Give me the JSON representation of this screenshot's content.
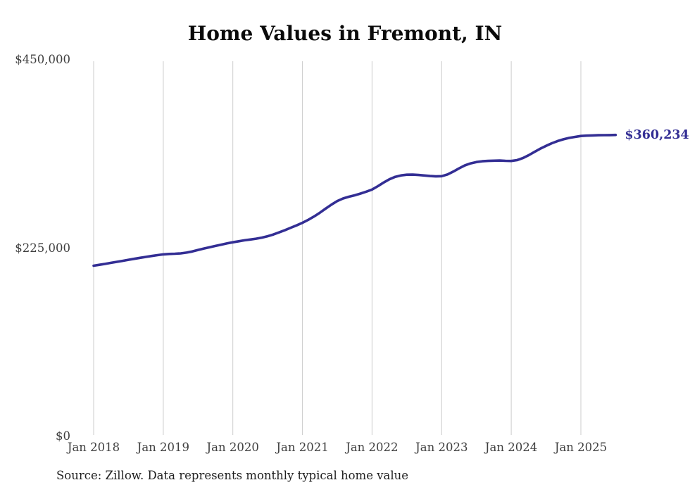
{
  "page": {
    "background": "#ffffff"
  },
  "chart_data": {
    "type": "line",
    "title": "Home Values in Fremont, IN",
    "xlabel": "",
    "ylabel": "",
    "ylim": [
      0,
      450000
    ],
    "grid": "vertical-only",
    "legend": "none",
    "line_color": "#332e94",
    "gridline_color": "#cccccc",
    "tick_text_color": "#3f3f3f",
    "end_label": "$360,234",
    "end_value": 360234,
    "source_note": "Source: Zillow. Data represents monthly typical home value",
    "yticks": [
      {
        "value": 0,
        "label": "$0"
      },
      {
        "value": 225000,
        "label": "$225,000"
      },
      {
        "value": 450000,
        "label": "$450,000"
      }
    ],
    "xticks": [
      {
        "index": 0,
        "label": "Jan 2018"
      },
      {
        "index": 12,
        "label": "Jan 2019"
      },
      {
        "index": 24,
        "label": "Jan 2020"
      },
      {
        "index": 36,
        "label": "Jan 2021"
      },
      {
        "index": 48,
        "label": "Jan 2022"
      },
      {
        "index": 60,
        "label": "Jan 2023"
      },
      {
        "index": 72,
        "label": "Jan 2024"
      },
      {
        "index": 84,
        "label": "Jan 2025"
      }
    ],
    "x": [
      "2018-01",
      "2018-02",
      "2018-03",
      "2018-04",
      "2018-05",
      "2018-06",
      "2018-07",
      "2018-08",
      "2018-09",
      "2018-10",
      "2018-11",
      "2018-12",
      "2019-01",
      "2019-02",
      "2019-03",
      "2019-04",
      "2019-05",
      "2019-06",
      "2019-07",
      "2019-08",
      "2019-09",
      "2019-10",
      "2019-11",
      "2019-12",
      "2020-01",
      "2020-02",
      "2020-03",
      "2020-04",
      "2020-05",
      "2020-06",
      "2020-07",
      "2020-08",
      "2020-09",
      "2020-10",
      "2020-11",
      "2020-12",
      "2021-01",
      "2021-02",
      "2021-03",
      "2021-04",
      "2021-05",
      "2021-06",
      "2021-07",
      "2021-08",
      "2021-09",
      "2021-10",
      "2021-11",
      "2021-12",
      "2022-01",
      "2022-02",
      "2022-03",
      "2022-04",
      "2022-05",
      "2022-06",
      "2022-07",
      "2022-08",
      "2022-09",
      "2022-10",
      "2022-11",
      "2022-12",
      "2023-01",
      "2023-02",
      "2023-03",
      "2023-04",
      "2023-05",
      "2023-06",
      "2023-07",
      "2023-08",
      "2023-09",
      "2023-10",
      "2023-11",
      "2023-12",
      "2024-01",
      "2024-02",
      "2024-03",
      "2024-04",
      "2024-05",
      "2024-06",
      "2024-07",
      "2024-08",
      "2024-09",
      "2024-10",
      "2024-11",
      "2024-12",
      "2025-01",
      "2025-02",
      "2025-03",
      "2025-04",
      "2025-05",
      "2025-06",
      "2025-07"
    ],
    "series": [
      {
        "name": "Monthly typical home value",
        "values": [
          204000,
          205100,
          206200,
          207400,
          208600,
          209800,
          211000,
          212200,
          213400,
          214500,
          215600,
          216600,
          217500,
          218000,
          218300,
          218700,
          219600,
          221000,
          222800,
          224500,
          226100,
          227600,
          229100,
          230600,
          232000,
          233200,
          234300,
          235300,
          236300,
          237500,
          239200,
          241300,
          243800,
          246500,
          249400,
          252200,
          255300,
          258800,
          262800,
          267300,
          272200,
          277000,
          281300,
          284300,
          286400,
          288100,
          290200,
          292500,
          295000,
          299000,
          303400,
          307300,
          310200,
          311900,
          312700,
          312800,
          312400,
          311800,
          311100,
          310700,
          311000,
          313000,
          316400,
          320300,
          323800,
          326300,
          327900,
          328800,
          329200,
          329500,
          329600,
          329300,
          329100,
          330100,
          332600,
          336000,
          340000,
          343800,
          347200,
          350300,
          352900,
          355000,
          356700,
          357900,
          359000,
          359400,
          359700,
          359900,
          360000,
          360100,
          360234
        ]
      }
    ]
  }
}
